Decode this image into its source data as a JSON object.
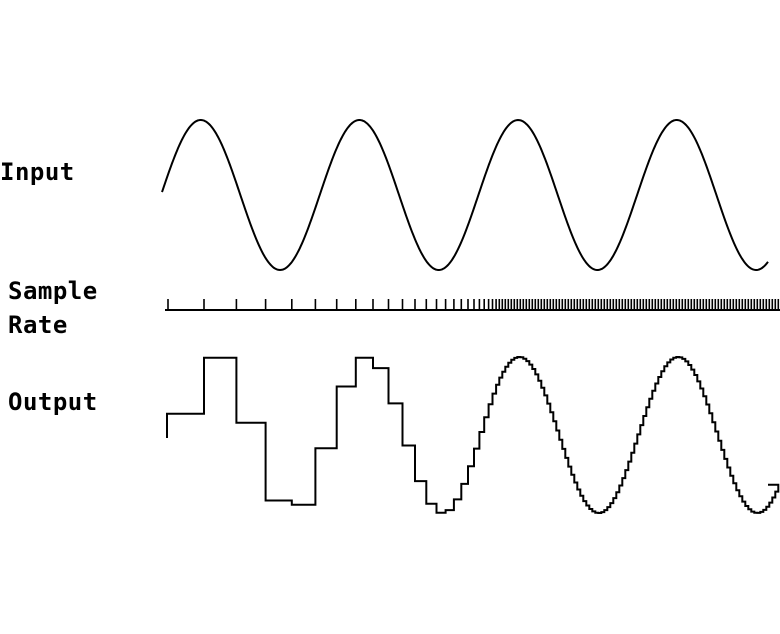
{
  "labels": {
    "input": "Input",
    "sample_line1": "Sample",
    "sample_line2": "Rate",
    "output": "Output"
  },
  "colors": {
    "background": "#ffffff",
    "ink": "#000000"
  },
  "signal": {
    "shape": "sine",
    "cycles": 4
  },
  "sampling": {
    "note": "tick spacing decreases from left to right (increasing sample rate)"
  }
}
